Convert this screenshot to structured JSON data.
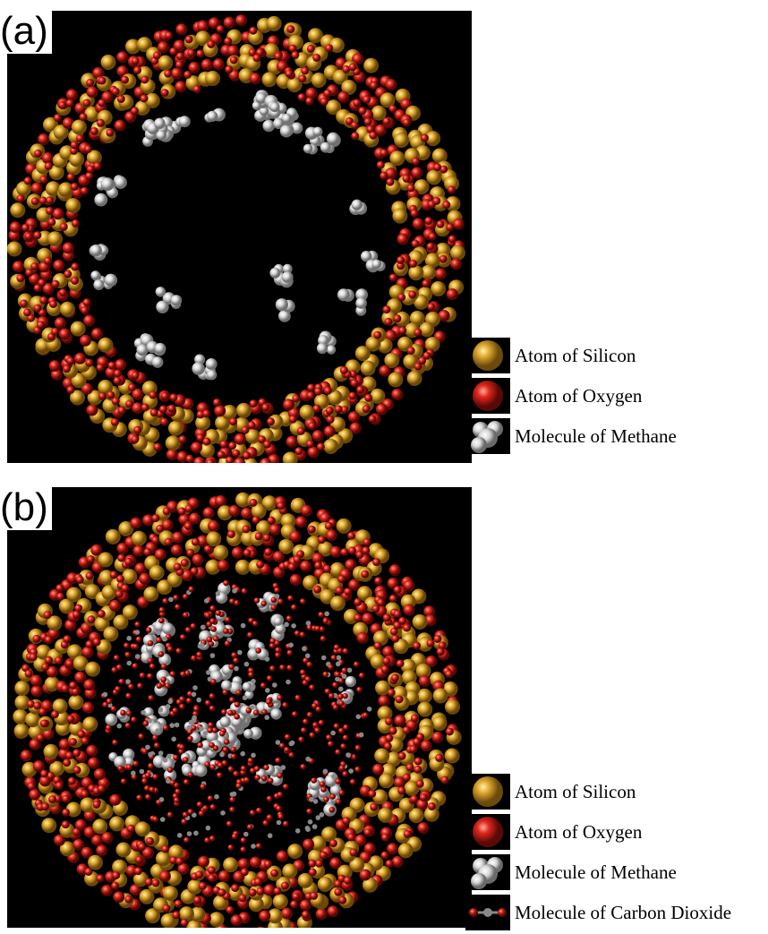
{
  "panel_a": {
    "tag": "(a)",
    "legend": [
      {
        "label": "Atom of Silicon",
        "icon": "silicon-atom"
      },
      {
        "label": "Atom of Oxygen",
        "icon": "oxygen-atom"
      },
      {
        "label": "Molecule of Methane",
        "icon": "methane-molecule"
      }
    ]
  },
  "panel_b": {
    "tag": "(b)",
    "legend": [
      {
        "label": "Atom of Silicon",
        "icon": "silicon-atom"
      },
      {
        "label": "Atom of Oxygen",
        "icon": "oxygen-atom"
      },
      {
        "label": "Molecule of Methane",
        "icon": "methane-molecule"
      },
      {
        "label": "Molecule of Carbon Dioxide",
        "icon": "carbon-dioxide-molecule"
      }
    ]
  },
  "colors": {
    "silicon": "#e0a82e",
    "oxygen": "#e0261c",
    "methane": "#e6e6e6",
    "carbon": "#777777",
    "background": "#000000"
  }
}
